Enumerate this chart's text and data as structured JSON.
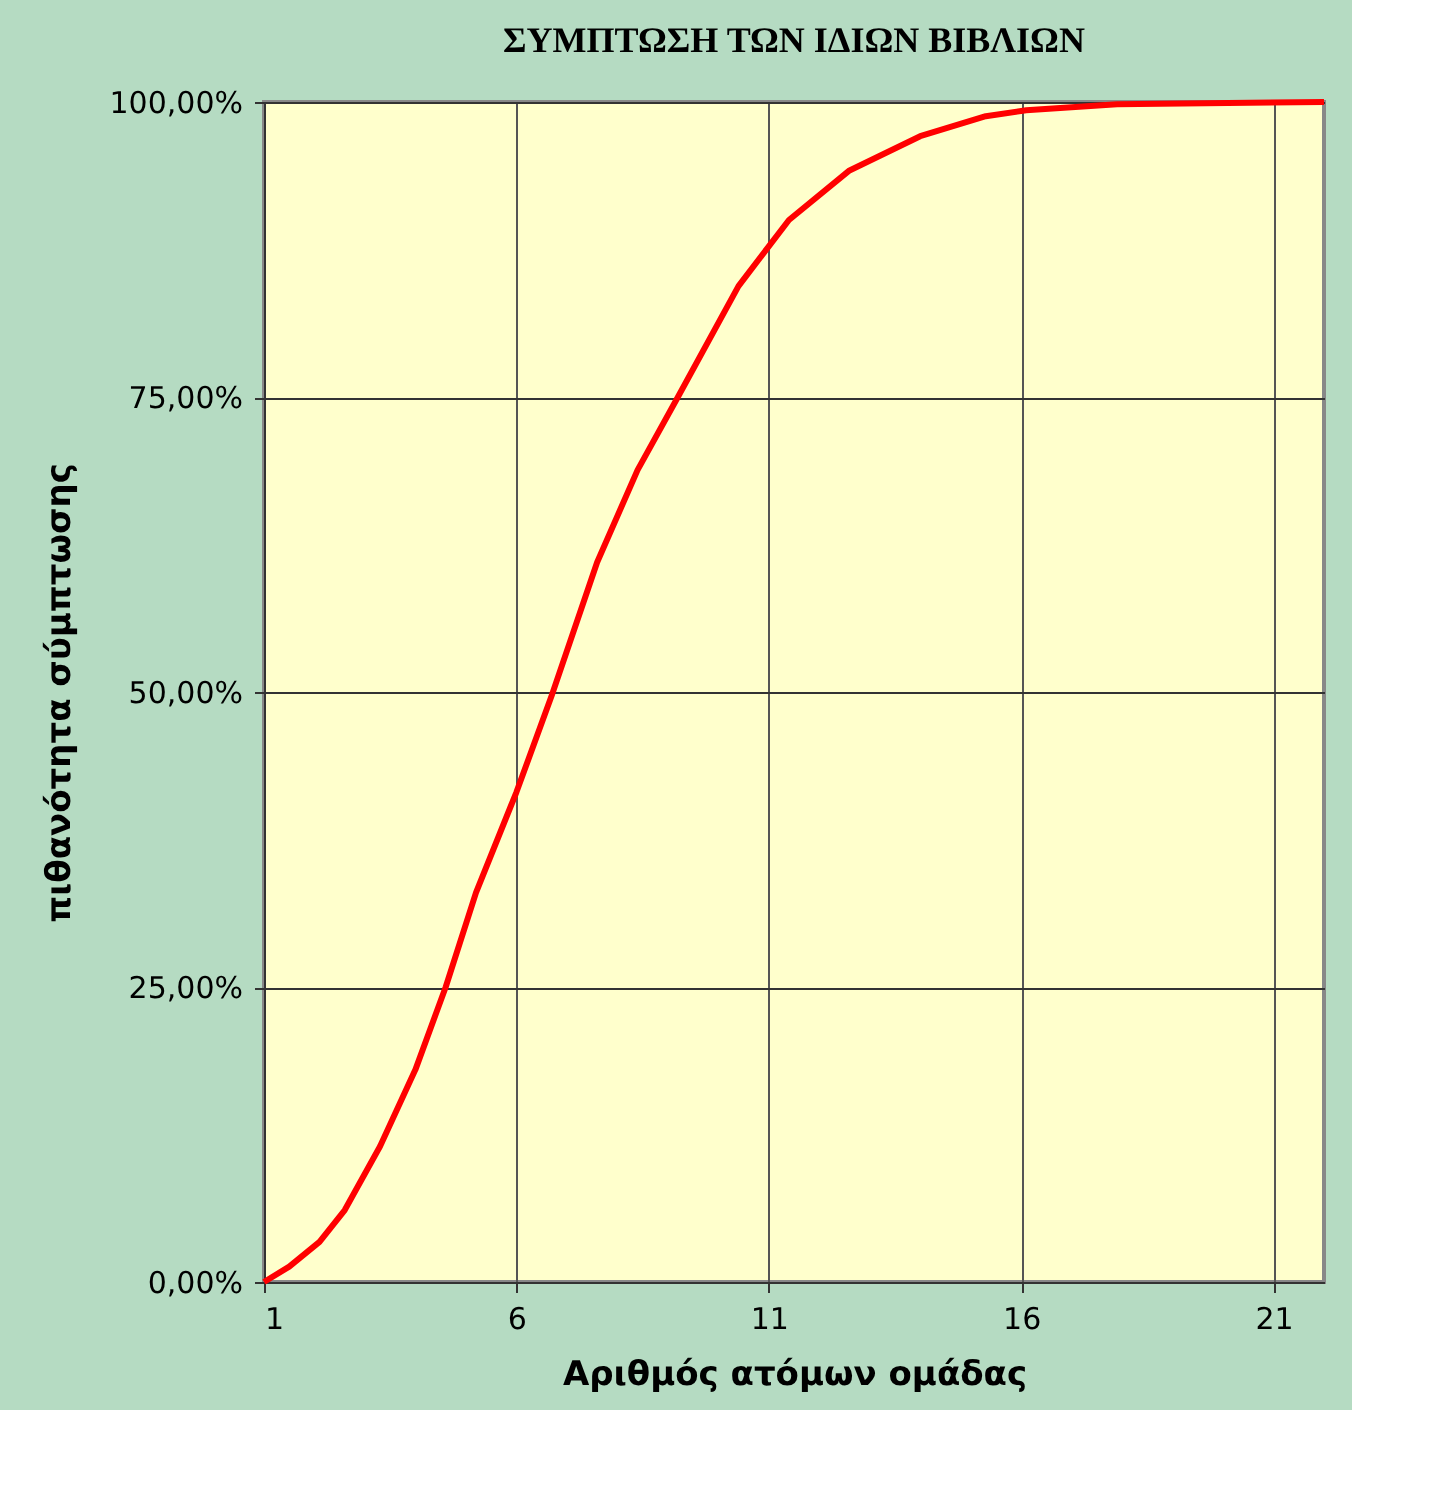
{
  "chart_data": {
    "type": "line",
    "title": "ΣΥΜΠΤΩΣΗ ΤΩΝ ΙΔΙΩΝ ΒΙΒΛΙΩΝ",
    "xlabel": "Αριθμός ατόμων ομάδας",
    "ylabel": "πιθανότητα σύμπτωσης",
    "x": [
      1,
      1.5,
      2.1,
      2.6,
      3.3,
      4.0,
      4.6,
      5.2,
      6.0,
      6.7,
      7.6,
      8.4,
      9.2,
      10.4,
      11.4,
      12.6,
      14.0,
      15.3,
      16.1,
      17.9,
      22
    ],
    "series": [
      {
        "color": "#ff0000",
        "values": [
          0,
          1.3,
          3.4,
          6.1,
          11.5,
          18,
          25,
          33,
          41.5,
          49.7,
          61,
          68.8,
          75,
          84.4,
          90,
          94.2,
          97.1,
          98.8,
          99.3,
          99.8,
          100
        ]
      }
    ],
    "xlim": [
      1,
      22
    ],
    "xticks": [
      1,
      6,
      11,
      16,
      21
    ],
    "ylim": [
      0,
      100
    ],
    "yticks": [
      {
        "value": 0,
        "label": "0,00%"
      },
      {
        "value": 25,
        "label": "25,00%"
      },
      {
        "value": 50,
        "label": "50,00%"
      },
      {
        "value": 75,
        "label": "75,00%"
      },
      {
        "value": 100,
        "label": "100,00%"
      }
    ],
    "grid": true,
    "marker": "none",
    "line_style": "solid"
  }
}
